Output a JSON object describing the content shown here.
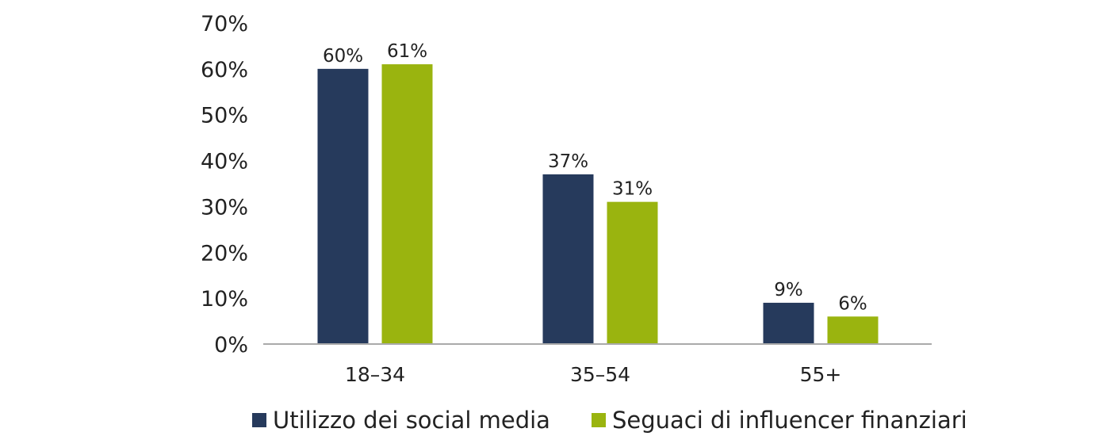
{
  "chart_data": {
    "type": "bar",
    "categories": [
      "18–34",
      "35–54",
      "55+"
    ],
    "series": [
      {
        "name": "Utilizzo dei social media",
        "values": [
          60,
          37,
          9
        ],
        "labels": [
          "60%",
          "37%",
          "9%"
        ],
        "color": "#263a5c"
      },
      {
        "name": "Seguaci di influencer finanziari",
        "values": [
          61,
          31,
          6
        ],
        "labels": [
          "61%",
          "31%",
          "6%"
        ],
        "color": "#9ab40f"
      }
    ],
    "yticks": [
      0,
      10,
      20,
      30,
      40,
      50,
      60,
      70
    ],
    "ytick_labels": [
      "0%",
      "10%",
      "20%",
      "30%",
      "40%",
      "50%",
      "60%",
      "70%"
    ],
    "ylim": [
      0,
      70
    ],
    "grid": false,
    "legend_position": "bottom",
    "axis_color": "#aaaaaa"
  }
}
